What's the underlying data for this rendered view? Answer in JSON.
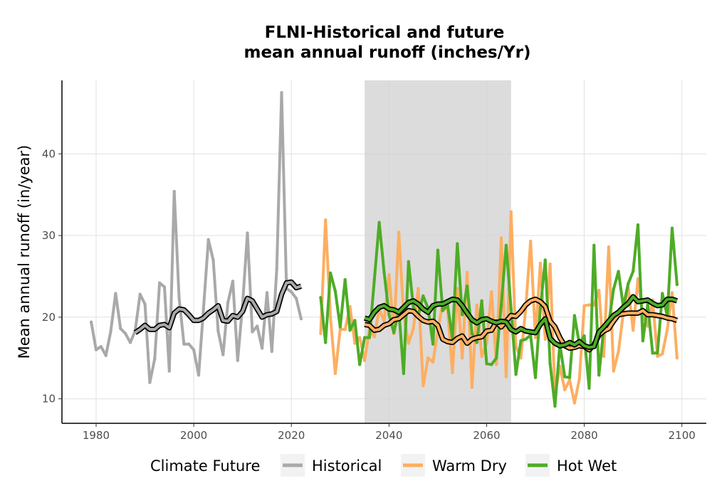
{
  "chart_data": {
    "type": "line",
    "title_lines": [
      "FLNI-Historical and future",
      "mean annual runoff (inches/Yr)"
    ],
    "ylabel": "Mean annual runoff (in/year)",
    "xlabel": "",
    "xlim": [
      1973,
      2105
    ],
    "ylim": [
      7,
      49
    ],
    "x_ticks": [
      1980,
      2000,
      2020,
      2040,
      2060,
      2080,
      2100
    ],
    "y_ticks": [
      10,
      20,
      30,
      40
    ],
    "grid": true,
    "shaded_period": [
      2035,
      2065
    ],
    "legend": {
      "title": "Climate Future",
      "position": "bottom"
    },
    "colors": {
      "Historical": "#a9a9a9",
      "Warm Dry": "#fdae61",
      "Hot Wet": "#4dac26",
      "smooth_outline": "#000000",
      "shade": "#d3d3d3"
    },
    "series": [
      {
        "name": "Historical",
        "x": [
          1979,
          1980,
          1981,
          1982,
          1983,
          1984,
          1985,
          1986,
          1987,
          1988,
          1989,
          1990,
          1991,
          1992,
          1993,
          1994,
          1995,
          1996,
          1997,
          1998,
          1999,
          2000,
          2001,
          2002,
          2003,
          2004,
          2005,
          2006,
          2007,
          2008,
          2009,
          2010,
          2011,
          2012,
          2013,
          2014,
          2015,
          2016,
          2017,
          2018,
          2019,
          2020,
          2021,
          2022
        ],
        "values": [
          19.4,
          16.0,
          16.4,
          15.3,
          18.3,
          22.9,
          18.6,
          18.0,
          16.9,
          18.3,
          22.8,
          21.6,
          12.0,
          14.9,
          24.2,
          23.7,
          13.4,
          35.4,
          22.4,
          16.7,
          16.7,
          16.0,
          12.9,
          21.0,
          29.5,
          27.0,
          18.3,
          15.4,
          21.8,
          24.4,
          14.7,
          21.5,
          30.3,
          18.2,
          18.9,
          16.2,
          23.0,
          15.8,
          25.9,
          47.5,
          23.5,
          23.1,
          22.3,
          19.8
        ],
        "smooth_x": [
          1988,
          1989,
          1990,
          1991,
          1992,
          1993,
          1994,
          1995,
          1996,
          1997,
          1998,
          1999,
          2000,
          2001,
          2002,
          2003,
          2004,
          2005,
          2006,
          2007,
          2008,
          2009,
          2010,
          2011,
          2012,
          2013,
          2014,
          2015,
          2016,
          2017,
          2018,
          2019,
          2020,
          2021,
          2022
        ],
        "smooth": [
          18.1,
          18.5,
          19.0,
          18.5,
          18.5,
          19.0,
          19.1,
          18.7,
          20.5,
          21.0,
          20.9,
          20.3,
          19.6,
          19.6,
          19.9,
          20.5,
          20.9,
          21.4,
          19.6,
          19.5,
          20.2,
          20.0,
          20.7,
          22.3,
          22.0,
          21.0,
          20.0,
          20.3,
          20.4,
          20.7,
          22.8,
          24.2,
          24.3,
          23.6,
          23.8
        ]
      },
      {
        "name": "Warm Dry",
        "x": [
          2026,
          2027,
          2028,
          2029,
          2030,
          2031,
          2032,
          2033,
          2034,
          2035,
          2036,
          2037,
          2038,
          2039,
          2040,
          2041,
          2042,
          2043,
          2044,
          2045,
          2046,
          2047,
          2048,
          2049,
          2050,
          2051,
          2052,
          2053,
          2054,
          2055,
          2056,
          2057,
          2058,
          2059,
          2060,
          2061,
          2062,
          2063,
          2064,
          2065,
          2066,
          2067,
          2068,
          2069,
          2070,
          2071,
          2072,
          2073,
          2074,
          2075,
          2076,
          2077,
          2078,
          2079,
          2080,
          2081,
          2082,
          2083,
          2084,
          2085,
          2086,
          2087,
          2088,
          2089,
          2090,
          2091,
          2092,
          2093,
          2094,
          2095,
          2096,
          2097,
          2098,
          2099
        ],
        "values": [
          18.0,
          31.9,
          20.0,
          13.1,
          18.5,
          18.5,
          21.3,
          16.8,
          17.5,
          14.7,
          18.5,
          17.6,
          21.0,
          19.5,
          25.2,
          18.0,
          30.4,
          20.3,
          16.8,
          18.6,
          23.5,
          11.6,
          15.0,
          14.5,
          18.3,
          21.8,
          21.0,
          13.2,
          23.5,
          15.0,
          25.5,
          11.4,
          21.5,
          15.2,
          16.8,
          23.1,
          14.2,
          29.7,
          12.7,
          32.9,
          16.4,
          15.0,
          21.0,
          29.3,
          17.5,
          26.6,
          17.3,
          26.5,
          10.4,
          14.0,
          11.1,
          12.3,
          9.5,
          12.4,
          21.4,
          21.5,
          21.5,
          23.3,
          15.2,
          28.6,
          13.4,
          15.8,
          20.5,
          23.7,
          18.4,
          24.7,
          20.2,
          18.9,
          22.1,
          15.2,
          15.5,
          18.5,
          23.0,
          15.0
        ],
        "smooth_x": [
          2035,
          2036,
          2037,
          2038,
          2039,
          2040,
          2041,
          2042,
          2043,
          2044,
          2045,
          2046,
          2047,
          2048,
          2049,
          2050,
          2051,
          2052,
          2053,
          2054,
          2055,
          2056,
          2057,
          2058,
          2059,
          2060,
          2061,
          2062,
          2063,
          2064,
          2065,
          2066,
          2067,
          2068,
          2069,
          2070,
          2071,
          2072,
          2073,
          2074,
          2075,
          2076,
          2077,
          2078,
          2079,
          2080,
          2081,
          2082,
          2083,
          2084,
          2085,
          2086,
          2087,
          2088,
          2089,
          2090,
          2091,
          2092,
          2093,
          2094,
          2095,
          2096,
          2097,
          2098,
          2099
        ],
        "smooth": [
          19.1,
          19.0,
          18.4,
          18.5,
          19.0,
          19.2,
          19.7,
          19.8,
          20.3,
          20.8,
          20.7,
          20.1,
          19.6,
          19.4,
          19.5,
          19.0,
          17.3,
          17.0,
          16.9,
          17.4,
          17.7,
          16.8,
          17.3,
          17.5,
          17.6,
          18.3,
          18.4,
          19.4,
          18.8,
          19.5,
          20.2,
          20.1,
          20.7,
          21.5,
          22.0,
          22.2,
          21.9,
          21.3,
          19.5,
          18.8,
          17.5,
          16.5,
          16.2,
          16.3,
          16.5,
          16.4,
          16.0,
          16.6,
          17.8,
          18.3,
          18.6,
          19.5,
          20.3,
          20.4,
          20.5,
          20.5,
          20.5,
          20.8,
          20.3,
          20.3,
          20.2,
          20.1,
          19.9,
          19.8,
          19.6
        ]
      },
      {
        "name": "Hot Wet",
        "x": [
          2026,
          2027,
          2028,
          2029,
          2030,
          2031,
          2032,
          2033,
          2034,
          2035,
          2036,
          2037,
          2038,
          2039,
          2040,
          2041,
          2042,
          2043,
          2044,
          2045,
          2046,
          2047,
          2048,
          2049,
          2050,
          2051,
          2052,
          2053,
          2054,
          2055,
          2056,
          2057,
          2058,
          2059,
          2060,
          2061,
          2062,
          2063,
          2064,
          2065,
          2066,
          2067,
          2068,
          2069,
          2070,
          2071,
          2072,
          2073,
          2074,
          2075,
          2076,
          2077,
          2078,
          2079,
          2080,
          2081,
          2082,
          2083,
          2084,
          2085,
          2086,
          2087,
          2088,
          2089,
          2090,
          2091,
          2092,
          2093,
          2094,
          2095,
          2096,
          2097,
          2098,
          2099
        ],
        "values": [
          22.4,
          16.9,
          25.4,
          23.2,
          18.8,
          24.6,
          18.4,
          19.6,
          14.2,
          17.5,
          17.5,
          24.6,
          31.6,
          25.5,
          20.3,
          18.1,
          20.9,
          13.1,
          26.8,
          21.2,
          20.3,
          22.6,
          21.1,
          16.7,
          28.2,
          20.8,
          21.5,
          17.4,
          29.0,
          20.3,
          23.8,
          18.0,
          16.9,
          22.0,
          14.3,
          14.2,
          15.0,
          21.5,
          28.8,
          21.0,
          13.0,
          17.1,
          17.3,
          17.8,
          12.6,
          21.1,
          27.0,
          14.3,
          9.1,
          16.7,
          12.7,
          12.6,
          20.2,
          16.7,
          17.7,
          11.3,
          28.8,
          12.9,
          18.7,
          19.2,
          23.4,
          25.6,
          21.3,
          24.1,
          25.6,
          31.3,
          17.1,
          21.6,
          15.6,
          15.6,
          22.9,
          20.1,
          30.9,
          24.0
        ],
        "smooth_x": [
          2035,
          2036,
          2037,
          2038,
          2039,
          2040,
          2041,
          2042,
          2043,
          2044,
          2045,
          2046,
          2047,
          2048,
          2049,
          2050,
          2051,
          2052,
          2053,
          2054,
          2055,
          2056,
          2057,
          2058,
          2059,
          2060,
          2061,
          2062,
          2063,
          2064,
          2065,
          2066,
          2067,
          2068,
          2069,
          2070,
          2071,
          2072,
          2073,
          2074,
          2075,
          2076,
          2077,
          2078,
          2079,
          2080,
          2081,
          2082,
          2083,
          2084,
          2085,
          2086,
          2087,
          2088,
          2089,
          2090,
          2091,
          2092,
          2093,
          2094,
          2095,
          2096,
          2097,
          2098,
          2099
        ],
        "smooth": [
          19.9,
          19.7,
          20.6,
          21.2,
          21.4,
          21.0,
          20.9,
          20.6,
          21.2,
          21.8,
          22.0,
          21.6,
          21.0,
          20.6,
          21.4,
          21.6,
          21.6,
          21.9,
          22.2,
          22.1,
          21.4,
          20.5,
          19.7,
          19.3,
          19.7,
          19.8,
          19.5,
          19.3,
          19.5,
          19.4,
          18.5,
          18.2,
          18.6,
          18.3,
          18.2,
          18.1,
          19.1,
          19.8,
          17.4,
          16.8,
          16.5,
          16.6,
          16.9,
          16.6,
          17.0,
          16.5,
          16.3,
          16.4,
          18.2,
          18.8,
          19.5,
          20.2,
          20.6,
          21.2,
          21.7,
          22.5,
          21.9,
          22.0,
          22.1,
          21.7,
          21.4,
          21.5,
          22.2,
          22.2,
          22.0
        ]
      }
    ]
  }
}
